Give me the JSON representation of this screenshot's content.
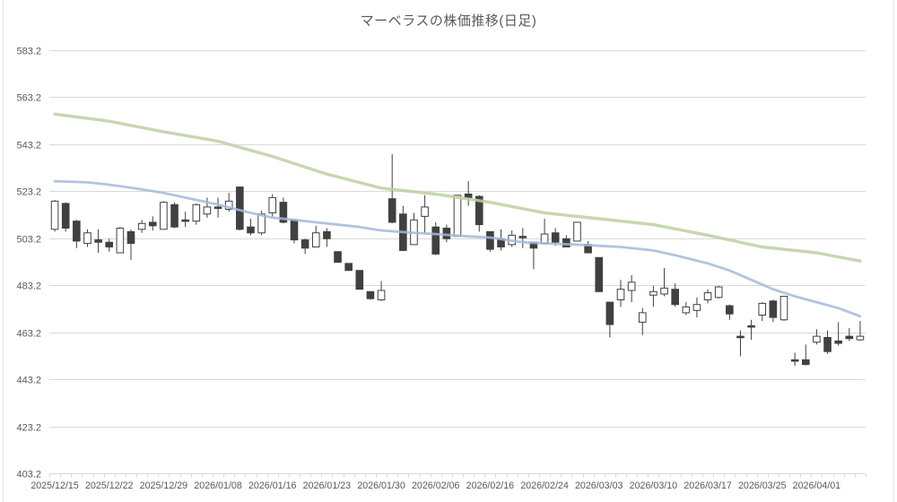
{
  "title": "マーベラスの株価推移(日足)",
  "chart_data": {
    "type": "candlestick",
    "title": "マーベラスの株価推移(日足)",
    "grid": true,
    "legend": "none",
    "y_axis": {
      "min": 403.2,
      "max": 583.2,
      "tick_step": 20,
      "tick_labels": [
        "583.2",
        "563.2",
        "543.2",
        "523.2",
        "503.2",
        "483.2",
        "463.2",
        "443.2",
        "423.2",
        "403.2"
      ]
    },
    "x_axis": {
      "label_interval": 5,
      "labels": [
        "2025/12/15",
        "2025/12/22",
        "2025/12/29",
        "2026/01/08",
        "2026/01/16",
        "2026/01/23",
        "2026/01/30",
        "2026/02/06",
        "2026/02/16",
        "2026/02/24",
        "2026/03/03",
        "2026/03/10",
        "2026/03/17",
        "2026/03/25",
        "2026/04/01"
      ]
    },
    "candles_format": [
      "date",
      "open",
      "high",
      "low",
      "close"
    ],
    "candles": [
      [
        "2025/12/15",
        507,
        519.5,
        506,
        519
      ],
      [
        "2025/12/16",
        518,
        518.5,
        506,
        507.5
      ],
      [
        "2025/12/17",
        510.5,
        511,
        499,
        502
      ],
      [
        "2025/12/18",
        501,
        507,
        499.5,
        505.5
      ],
      [
        "2025/12/19",
        502.5,
        507,
        497,
        501.5
      ],
      [
        "2025/12/22",
        501.5,
        503,
        497.5,
        499.5
      ],
      [
        "2025/12/23",
        497,
        508,
        497,
        507.5
      ],
      [
        "2025/12/24",
        506,
        507,
        494,
        501
      ],
      [
        "2025/12/25",
        507,
        511,
        505.5,
        509.5
      ],
      [
        "2025/12/26",
        510,
        512.5,
        506.5,
        508.5
      ],
      [
        "2025/12/29",
        507,
        519,
        507,
        518.5
      ],
      [
        "2025/12/30",
        517.5,
        518.5,
        507.5,
        508
      ],
      [
        "2026/01/05",
        511,
        514.5,
        508,
        510.5
      ],
      [
        "2026/01/06",
        510.5,
        518,
        509,
        517.5
      ],
      [
        "2026/01/07",
        513.5,
        520.5,
        512,
        516.5
      ],
      [
        "2026/01/08",
        516.5,
        520.5,
        512,
        516
      ],
      [
        "2026/01/09",
        515.5,
        522.5,
        514.5,
        519
      ],
      [
        "2026/01/13",
        525,
        525,
        506.5,
        507
      ],
      [
        "2026/01/14",
        508,
        511.5,
        504.5,
        505.5
      ],
      [
        "2026/01/15",
        505.5,
        515,
        504.5,
        513.5
      ],
      [
        "2026/01/16",
        514,
        522,
        512.5,
        520.5
      ],
      [
        "2026/01/19",
        518.5,
        520.5,
        509.5,
        510
      ],
      [
        "2026/01/20",
        511,
        511,
        501,
        502.5
      ],
      [
        "2026/01/21",
        502.5,
        503,
        496.5,
        499
      ],
      [
        "2026/01/22",
        499.5,
        508.5,
        499.5,
        505.5
      ],
      [
        "2026/01/23",
        506,
        507.5,
        499.5,
        503
      ],
      [
        "2026/01/26",
        497.5,
        497.5,
        493,
        493
      ],
      [
        "2026/01/27",
        492.5,
        492.5,
        489.5,
        489.5
      ],
      [
        "2026/01/28",
        489.5,
        489.5,
        481.5,
        481.5
      ],
      [
        "2026/01/29",
        480.5,
        480.5,
        477,
        477.5
      ],
      [
        "2026/01/30",
        477,
        485,
        476.5,
        481
      ],
      [
        "2026/02/02",
        520,
        539,
        509.5,
        510
      ],
      [
        "2026/02/03",
        513.5,
        517,
        498,
        498
      ],
      [
        "2026/02/04",
        500.5,
        514,
        500.5,
        511
      ],
      [
        "2026/02/05",
        512.5,
        521.5,
        505.5,
        516.5
      ],
      [
        "2026/02/06",
        508,
        510,
        496,
        496.5
      ],
      [
        "2026/02/09",
        507.5,
        509,
        501.5,
        503
      ],
      [
        "2026/02/10",
        504,
        521.5,
        504,
        521.5
      ],
      [
        "2026/02/12",
        522,
        527.5,
        517,
        520.5
      ],
      [
        "2026/02/13",
        521,
        521.5,
        506,
        509
      ],
      [
        "2026/02/16",
        506,
        506,
        497.5,
        498.5
      ],
      [
        "2026/02/17",
        503,
        507,
        498,
        499.5
      ],
      [
        "2026/02/18",
        500.5,
        506.5,
        499.5,
        504.5
      ],
      [
        "2026/02/19",
        504,
        507.5,
        499,
        503.5
      ],
      [
        "2026/02/20",
        501.5,
        501.5,
        490,
        499
      ],
      [
        "2026/02/24",
        501,
        511.5,
        501,
        505
      ],
      [
        "2026/02/25",
        505.5,
        507.5,
        500,
        501.5
      ],
      [
        "2026/02/26",
        503,
        504.5,
        499.5,
        499.5
      ],
      [
        "2026/02/27",
        502,
        510,
        502,
        510
      ],
      [
        "2026/03/02",
        500.5,
        502,
        497,
        497
      ],
      [
        "2026/03/03",
        495,
        495,
        480.5,
        480.5
      ],
      [
        "2026/03/04",
        476,
        476,
        461,
        466.5
      ],
      [
        "2026/03/05",
        477,
        485.5,
        474,
        481.5
      ],
      [
        "2026/03/06",
        481,
        487.5,
        476,
        484.5
      ],
      [
        "2026/03/09",
        467.5,
        473.5,
        462,
        471.5
      ],
      [
        "2026/03/10",
        479,
        483,
        474,
        480.5
      ],
      [
        "2026/03/11",
        479.5,
        490.5,
        478.5,
        482
      ],
      [
        "2026/03/12",
        481.5,
        484,
        474,
        475
      ],
      [
        "2026/03/13",
        471.5,
        476,
        470.5,
        474
      ],
      [
        "2026/03/16",
        472.5,
        478,
        469.5,
        475
      ],
      [
        "2026/03/17",
        477,
        481.5,
        475.5,
        480
      ],
      [
        "2026/03/18",
        478,
        483,
        477.5,
        482.5
      ],
      [
        "2026/03/19",
        474.5,
        475,
        468.5,
        471
      ],
      [
        "2026/03/23",
        461.5,
        464,
        453,
        461
      ],
      [
        "2026/03/24",
        466,
        468.5,
        460,
        465.5
      ],
      [
        "2026/03/25",
        470.5,
        476,
        468,
        475.5
      ],
      [
        "2026/03/26",
        476.5,
        477,
        467.5,
        469.5
      ],
      [
        "2026/03/27",
        468.5,
        478.5,
        468,
        478.5
      ],
      [
        "2026/03/30",
        451.5,
        454.5,
        449,
        451
      ],
      [
        "2026/03/31",
        451.5,
        458,
        449,
        449.5
      ],
      [
        "2026/04/01",
        459,
        464.5,
        458,
        461.5
      ],
      [
        "2026/04/02",
        461,
        464,
        454,
        455
      ],
      [
        "2026/04/03",
        459.5,
        467.5,
        457.5,
        458.5
      ],
      [
        "2026/04/06",
        461.5,
        465,
        459.5,
        460.5
      ],
      [
        "2026/04/07",
        460,
        468,
        459.5,
        461.5
      ]
    ],
    "series": [
      {
        "name": "moving-average-short",
        "type": "line",
        "color": "#a6b8d9",
        "points": [
          [
            0,
            527.5
          ],
          [
            3,
            527
          ],
          [
            5,
            526
          ],
          [
            8,
            524
          ],
          [
            10,
            522.5
          ],
          [
            13,
            519.5
          ],
          [
            15,
            517.5
          ],
          [
            18,
            514
          ],
          [
            20,
            512
          ],
          [
            23,
            510.5
          ],
          [
            25,
            509.5
          ],
          [
            28,
            508
          ],
          [
            30,
            506.5
          ],
          [
            33,
            505.5
          ],
          [
            35,
            505
          ],
          [
            38,
            504
          ],
          [
            40,
            503.5
          ],
          [
            43,
            501.5
          ],
          [
            45,
            501
          ],
          [
            48,
            500.5
          ],
          [
            50,
            500
          ],
          [
            52,
            499.5
          ],
          [
            55,
            498
          ],
          [
            57,
            496
          ],
          [
            60,
            492.5
          ],
          [
            62,
            489.5
          ],
          [
            64,
            485.5
          ],
          [
            66,
            481.5
          ],
          [
            68,
            478.5
          ],
          [
            70,
            476
          ],
          [
            72,
            473.5
          ],
          [
            74,
            470
          ]
        ]
      },
      {
        "name": "moving-average-long",
        "type": "line",
        "color": "#bccfa4",
        "points": [
          [
            0,
            556
          ],
          [
            5,
            553
          ],
          [
            10,
            548.5
          ],
          [
            15,
            544.5
          ],
          [
            20,
            538
          ],
          [
            25,
            530.5
          ],
          [
            30,
            524.5
          ],
          [
            35,
            522
          ],
          [
            40,
            518.5
          ],
          [
            45,
            514
          ],
          [
            50,
            511.5
          ],
          [
            55,
            509
          ],
          [
            60,
            504.5
          ],
          [
            65,
            499.5
          ],
          [
            70,
            497
          ],
          [
            74,
            493.5
          ]
        ]
      }
    ],
    "colors": {
      "up_fill": "#ffffff",
      "down_fill": "#404040",
      "candle_border": "#404040",
      "gridline": "#d9d9d9",
      "axis_line": "#d9d9d9",
      "axis_text": "#595959",
      "title_text": "#595959",
      "background": "#ffffff"
    }
  }
}
